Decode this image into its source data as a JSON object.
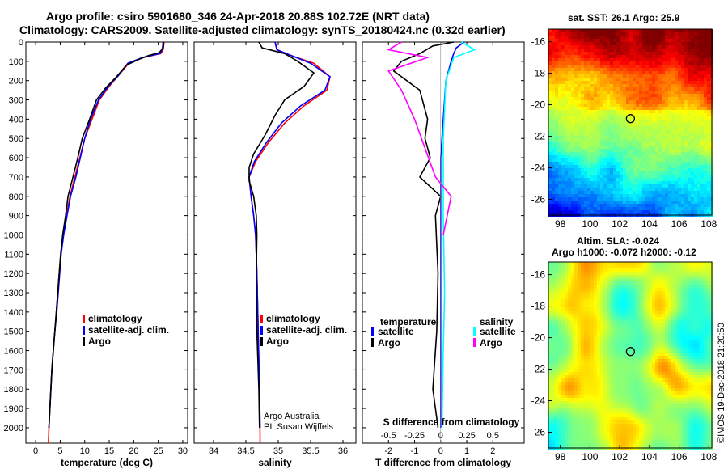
{
  "header": {
    "title_line1": "Argo profile: csiro 5901680_346 24-Apr-2018 20.88S 102.72E (NRT data)",
    "title_line2": "Climatology: CARS2009. Satellite-adjusted climatology: synTS_20180424.nc (0.32d earlier)"
  },
  "credit": "©IMOS 19-Dec-2018 21:20:50",
  "colors": {
    "climatology": "#ff0000",
    "satellite": "#0000ff",
    "argo": "#000000",
    "sat_salinity": "#00ffff",
    "argo_salinity": "#ff00ff"
  },
  "chart_data": [
    {
      "id": "temperature",
      "type": "line",
      "xlabel": "temperature (deg C)",
      "xlim": [
        -2,
        31
      ],
      "ylim": [
        2080,
        0
      ],
      "xticks": [
        0,
        5,
        10,
        15,
        20,
        25,
        30
      ],
      "yticks": [
        0,
        100,
        200,
        300,
        400,
        500,
        600,
        700,
        800,
        900,
        1000,
        1100,
        1200,
        1300,
        1400,
        1500,
        1600,
        1700,
        1800,
        1900,
        2000
      ],
      "legend": [
        "climatology",
        "satellite-adj. clim.",
        "Argo"
      ],
      "series": [
        {
          "name": "climatology",
          "color": "#ff0000",
          "points": [
            [
              26.2,
              0
            ],
            [
              26,
              40
            ],
            [
              25.5,
              60
            ],
            [
              22,
              80
            ],
            [
              19,
              110
            ],
            [
              17,
              170
            ],
            [
              15,
              230
            ],
            [
              13,
              300
            ],
            [
              11.5,
              400
            ],
            [
              10,
              500
            ],
            [
              9,
              600
            ],
            [
              8,
              700
            ],
            [
              7,
              800
            ],
            [
              6.3,
              900
            ],
            [
              5.6,
              1000
            ],
            [
              5.1,
              1100
            ],
            [
              4.8,
              1200
            ],
            [
              4.5,
              1300
            ],
            [
              4.2,
              1400
            ],
            [
              3.9,
              1500
            ],
            [
              3.6,
              1600
            ],
            [
              3.3,
              1700
            ],
            [
              3.1,
              1800
            ],
            [
              2.9,
              1900
            ],
            [
              2.7,
              2000
            ],
            [
              2.6,
              2080
            ]
          ]
        },
        {
          "name": "satellite-adj. clim.",
          "color": "#0000ff",
          "points": [
            [
              26,
              0
            ],
            [
              25.8,
              40
            ],
            [
              25.3,
              60
            ],
            [
              21.8,
              80
            ],
            [
              18.8,
              110
            ],
            [
              17,
              170
            ],
            [
              14.8,
              230
            ],
            [
              12.8,
              300
            ],
            [
              11.2,
              400
            ],
            [
              10,
              500
            ],
            [
              9.1,
              600
            ],
            [
              8.2,
              700
            ],
            [
              7.1,
              800
            ],
            [
              6.4,
              900
            ],
            [
              5.7,
              1000
            ],
            [
              5.2,
              1100
            ],
            [
              4.9,
              1200
            ],
            [
              4.6,
              1300
            ],
            [
              4.3,
              1400
            ],
            [
              3.9,
              1500
            ],
            [
              3.6,
              1600
            ],
            [
              3.3,
              1700
            ],
            [
              3.1,
              1800
            ],
            [
              2.9,
              1900
            ],
            [
              2.7,
              2000
            ]
          ]
        },
        {
          "name": "Argo",
          "color": "#000000",
          "points": [
            [
              26.1,
              0
            ],
            [
              26,
              30
            ],
            [
              25.2,
              55
            ],
            [
              23,
              70
            ],
            [
              21,
              90
            ],
            [
              18.5,
              120
            ],
            [
              16.5,
              180
            ],
            [
              14.2,
              240
            ],
            [
              12.4,
              300
            ],
            [
              11,
              400
            ],
            [
              9.5,
              500
            ],
            [
              8.6,
              600
            ],
            [
              7.6,
              700
            ],
            [
              6.6,
              800
            ],
            [
              6.1,
              900
            ],
            [
              5.5,
              1000
            ],
            [
              5.1,
              1100
            ],
            [
              4.8,
              1200
            ],
            [
              4.5,
              1300
            ],
            [
              4.2,
              1400
            ],
            [
              3.9,
              1500
            ],
            [
              3.6,
              1600
            ],
            [
              3.3,
              1700
            ],
            [
              3.1,
              1800
            ],
            [
              2.9,
              1900
            ],
            [
              2.7,
              2000
            ]
          ]
        }
      ]
    },
    {
      "id": "salinity",
      "type": "line",
      "xlabel": "salinity",
      "xlim": [
        33.7,
        36.2
      ],
      "ylim": [
        2080,
        0
      ],
      "xticks": [
        34,
        34.5,
        35,
        35.5,
        36
      ],
      "legend": [
        "climatology",
        "satellite-adj. clim.",
        "Argo"
      ],
      "annotation": [
        "Argo Australia",
        "PI: Susan Wijffels"
      ],
      "series": [
        {
          "name": "climatology",
          "color": "#ff0000",
          "points": [
            [
              34.95,
              0
            ],
            [
              34.98,
              40
            ],
            [
              35.2,
              70
            ],
            [
              35.55,
              110
            ],
            [
              35.8,
              180
            ],
            [
              35.75,
              250
            ],
            [
              35.4,
              330
            ],
            [
              35.1,
              420
            ],
            [
              34.85,
              520
            ],
            [
              34.65,
              620
            ],
            [
              34.55,
              700
            ],
            [
              34.58,
              800
            ],
            [
              34.62,
              900
            ],
            [
              34.65,
              1000
            ],
            [
              34.67,
              1200
            ],
            [
              34.69,
              1500
            ],
            [
              34.71,
              1800
            ],
            [
              34.72,
              2080
            ]
          ]
        },
        {
          "name": "satellite-adj. clim.",
          "color": "#0000ff",
          "points": [
            [
              34.95,
              0
            ],
            [
              34.98,
              40
            ],
            [
              35.2,
              70
            ],
            [
              35.5,
              110
            ],
            [
              35.8,
              180
            ],
            [
              35.72,
              250
            ],
            [
              35.35,
              330
            ],
            [
              35.05,
              420
            ],
            [
              34.82,
              520
            ],
            [
              34.63,
              620
            ],
            [
              34.55,
              700
            ],
            [
              34.58,
              800
            ],
            [
              34.62,
              900
            ],
            [
              34.65,
              1000
            ],
            [
              34.67,
              1200
            ],
            [
              34.69,
              1500
            ],
            [
              34.71,
              1800
            ],
            [
              34.72,
              2000
            ]
          ]
        },
        {
          "name": "Argo",
          "color": "#000000",
          "points": [
            [
              34.7,
              0
            ],
            [
              34.75,
              30
            ],
            [
              35.1,
              60
            ],
            [
              35.3,
              100
            ],
            [
              35.55,
              160
            ],
            [
              35.4,
              230
            ],
            [
              35.1,
              300
            ],
            [
              34.95,
              380
            ],
            [
              34.8,
              480
            ],
            [
              34.62,
              580
            ],
            [
              34.55,
              650
            ],
            [
              34.55,
              720
            ],
            [
              34.62,
              800
            ],
            [
              34.66,
              900
            ],
            [
              34.67,
              1000
            ],
            [
              34.66,
              1200
            ],
            [
              34.67,
              1500
            ],
            [
              34.7,
              1800
            ],
            [
              34.71,
              2000
            ]
          ]
        }
      ]
    },
    {
      "id": "difference",
      "type": "line",
      "xlabel": "T difference from climatology",
      "xlabel2": "S difference from climatology",
      "xlim": [
        -3,
        3.2
      ],
      "ylim": [
        2080,
        0
      ],
      "xticks": [
        -2,
        -1,
        0,
        1,
        2
      ],
      "xticks2": [
        "-0.5",
        "-0.25",
        "0",
        "0.25",
        "0.5"
      ],
      "legend_left_title": "temperature",
      "legend_right_title": "salinity",
      "legend_left": [
        "satellite",
        "Argo"
      ],
      "legend_right": [
        "satellite",
        "Argo"
      ],
      "series": [
        {
          "name": "T satellite",
          "color": "#0000ff",
          "points": [
            [
              0.9,
              0
            ],
            [
              0.6,
              30
            ],
            [
              0.5,
              60
            ],
            [
              0.4,
              100
            ],
            [
              0.2,
              200
            ],
            [
              0.1,
              400
            ],
            [
              0,
              600
            ],
            [
              0,
              800
            ],
            [
              0,
              1200
            ],
            [
              0,
              2000
            ]
          ]
        },
        {
          "name": "T Argo",
          "color": "#000000",
          "points": [
            [
              0.5,
              0
            ],
            [
              -0.3,
              20
            ],
            [
              -0.8,
              60
            ],
            [
              -1.5,
              100
            ],
            [
              -1.8,
              150
            ],
            [
              -0.8,
              250
            ],
            [
              -0.5,
              400
            ],
            [
              -0.6,
              500
            ],
            [
              -0.4,
              600
            ],
            [
              -0.8,
              700
            ],
            [
              0,
              800
            ],
            [
              -0.2,
              900
            ],
            [
              -0.1,
              1200
            ],
            [
              -0.15,
              1500
            ],
            [
              -0.3,
              1800
            ],
            [
              -0.1,
              2000
            ]
          ]
        },
        {
          "name": "S satellite",
          "color": "#00ffff",
          "points": [
            [
              0.8,
              0
            ],
            [
              1.3,
              40
            ],
            [
              0.5,
              80
            ],
            [
              0.2,
              200
            ],
            [
              0.1,
              500
            ],
            [
              0.1,
              900
            ],
            [
              0.15,
              1300
            ],
            [
              0.1,
              1600
            ],
            [
              0.05,
              2000
            ]
          ]
        },
        {
          "name": "S Argo",
          "color": "#ff00ff",
          "points": [
            [
              -1.5,
              0
            ],
            [
              -2,
              40
            ],
            [
              -0.5,
              80
            ],
            [
              -2,
              150
            ],
            [
              -1.5,
              250
            ],
            [
              -1,
              400
            ],
            [
              -0.6,
              550
            ],
            [
              -0.2,
              700
            ],
            [
              0.4,
              800
            ],
            [
              0.1,
              1000
            ]
          ]
        }
      ]
    },
    {
      "id": "sst_map",
      "type": "heatmap",
      "title": "sat. SST: 26.1  Argo: 25.9",
      "xticks": [
        98,
        100,
        102,
        104,
        106,
        108
      ],
      "yticks": [
        -16,
        -18,
        -20,
        -22,
        -24,
        -26
      ],
      "xlim": [
        97.2,
        108.2
      ],
      "ylim": [
        -27,
        -15.2
      ],
      "marker": [
        102.72,
        -20.88
      ]
    },
    {
      "id": "sla_map",
      "type": "heatmap",
      "title": "Altim. SLA: -0.024",
      "subtitle": "Argo h1000: -0.072  h2000: -0.12",
      "xticks": [
        98,
        100,
        102,
        104,
        106,
        108
      ],
      "yticks": [
        -16,
        -18,
        -20,
        -22,
        -24,
        -26
      ],
      "xlim": [
        97.2,
        108.2
      ],
      "ylim": [
        -27,
        -15.2
      ],
      "marker": [
        102.72,
        -20.88
      ]
    }
  ]
}
